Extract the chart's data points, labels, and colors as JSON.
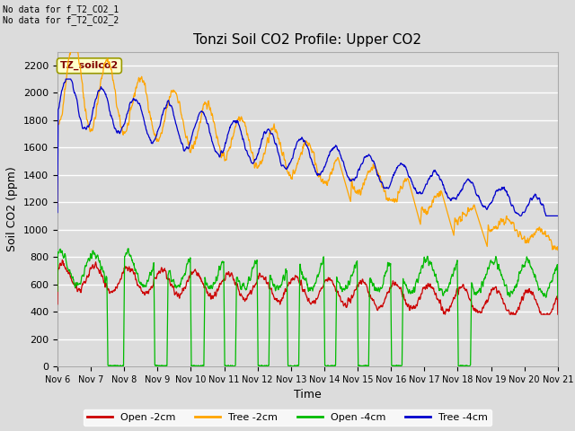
{
  "title": "Tonzi Soil CO2 Profile: Upper CO2",
  "xlabel": "Time",
  "ylabel": "Soil CO2 (ppm)",
  "top_left_text": "No data for f_T2_CO2_1\nNo data for f_T2_CO2_2",
  "legend_box_label": "TZ_soilco2",
  "background_color": "#dcdcdc",
  "plot_bg_color": "#dcdcdc",
  "grid_color": "#ffffff",
  "ylim": [
    0,
    2300
  ],
  "colors": {
    "open_2cm": "#cc0000",
    "tree_2cm": "#ffa500",
    "open_4cm": "#00bb00",
    "tree_4cm": "#0000cc"
  },
  "legend_labels": [
    "Open -2cm",
    "Tree -2cm",
    "Open -4cm",
    "Tree -4cm"
  ],
  "x_tick_labels": [
    "Nov 6",
    "Nov 7",
    "Nov 8",
    "Nov 9",
    "Nov 10",
    "Nov 11",
    "Nov 12",
    "Nov 13",
    "Nov 14",
    "Nov 15",
    "Nov 16",
    "Nov 17",
    "Nov 18",
    "Nov 19",
    "Nov 20",
    "Nov 21"
  ],
  "figsize": [
    6.4,
    4.8
  ],
  "dpi": 100
}
